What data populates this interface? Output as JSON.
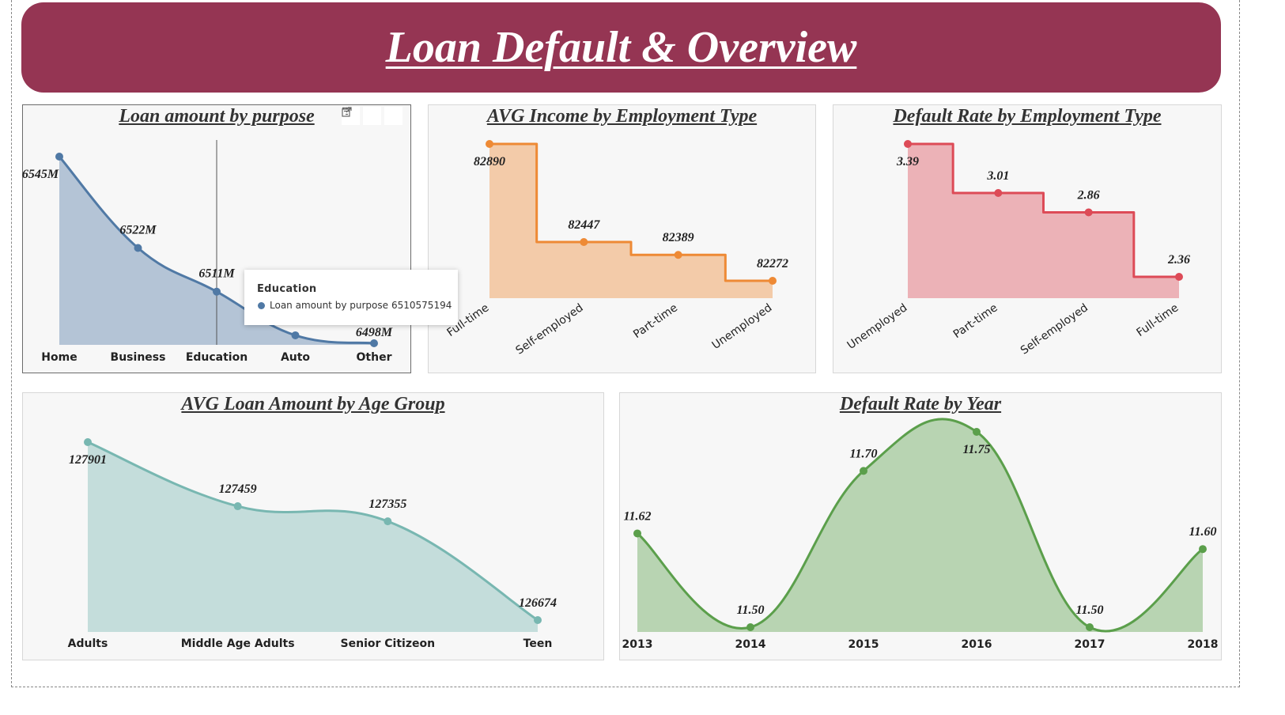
{
  "header": {
    "title": "Loan Default & Overview"
  },
  "colors": {
    "banner": "#953553",
    "purpose": "#5079A5",
    "income": "#EE8A35",
    "default_emp": "#DD4B57",
    "age": "#78B7B1",
    "year": "#5B9F4B"
  },
  "panel_icons": [
    "filter-icon",
    "focus-mode-icon",
    "more-options-icon"
  ],
  "tooltip": {
    "title": "Education",
    "series": "Loan amount by purpose",
    "value": "6510575194"
  },
  "chart_data": [
    {
      "type": "area",
      "title": "Loan amount by purpose",
      "categories": [
        "Home",
        "Business",
        "Education",
        "Auto",
        "Other"
      ],
      "values": [
        6545,
        6522,
        6511,
        6500,
        6498
      ],
      "labels": [
        "6545M",
        "6522M",
        "6511M",
        "",
        "6498M"
      ],
      "unit": "M",
      "hover_category": "Education"
    },
    {
      "type": "area",
      "step": true,
      "title": "AVG Income by Employment Type",
      "categories": [
        "Full-time",
        "Self-employed",
        "Part-time",
        "Unemployed"
      ],
      "values": [
        82890,
        82447,
        82389,
        82272
      ],
      "labels": [
        "82890",
        "82447",
        "82389",
        "82272"
      ]
    },
    {
      "type": "area",
      "step": true,
      "title": "Default Rate by Employment Type",
      "categories": [
        "Unemployed",
        "Part-time",
        "Self-employed",
        "Full-time"
      ],
      "values": [
        3.39,
        3.01,
        2.86,
        2.36
      ],
      "labels": [
        "3.39",
        "3.01",
        "2.86",
        "2.36"
      ]
    },
    {
      "type": "area",
      "title": "AVG Loan Amount by Age Group",
      "categories": [
        "Adults",
        "Middle Age Adults",
        "Senior Citizeon",
        "Teen"
      ],
      "values": [
        127901,
        127459,
        127355,
        126674
      ],
      "labels": [
        "127901",
        "127459",
        "127355",
        "126674"
      ]
    },
    {
      "type": "area",
      "title": "Default Rate by Year",
      "categories": [
        "2013",
        "2014",
        "2015",
        "2016",
        "2017",
        "2018"
      ],
      "values": [
        11.62,
        11.5,
        11.7,
        11.75,
        11.5,
        11.6
      ],
      "labels": [
        "11.62",
        "11.50",
        "11.70",
        "11.75",
        "11.50",
        "11.60"
      ]
    }
  ]
}
